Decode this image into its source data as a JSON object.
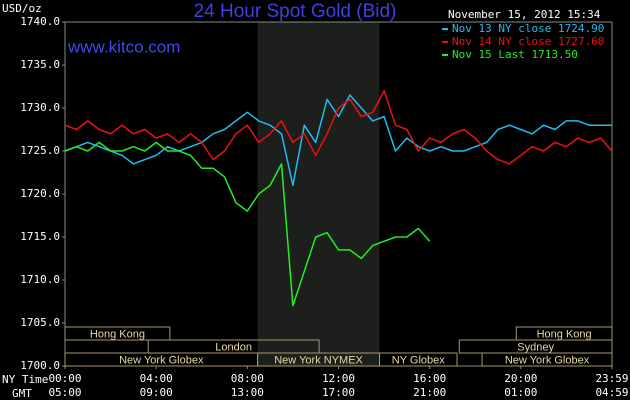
{
  "chart_data": {
    "type": "line",
    "title": "24 Hour Spot Gold (Bid)",
    "subtitle": "www.kitco.com",
    "timestamp": "November 15, 2012 15:34",
    "y_label": "USD/oz",
    "x_row_labels": [
      "NY Time",
      "GMT"
    ],
    "x": [
      0,
      0.5,
      1,
      1.5,
      2,
      2.5,
      3,
      3.5,
      4,
      4.5,
      5,
      5.5,
      6,
      6.5,
      7,
      7.5,
      8,
      8.5,
      9,
      9.5,
      10,
      10.5,
      11,
      11.5,
      12,
      12.5,
      13,
      13.5,
      14,
      14.5,
      15,
      15.5,
      16,
      16.5,
      17,
      17.5,
      18,
      18.5,
      19,
      19.5,
      20,
      20.5,
      21,
      21.5,
      22,
      22.5,
      23,
      23.5,
      24
    ],
    "xlim": [
      0,
      24
    ],
    "xticks": [
      {
        "value": 0,
        "label": "00:00"
      },
      {
        "value": 4,
        "label": "04:00"
      },
      {
        "value": 8,
        "label": "08:00"
      },
      {
        "value": 12,
        "label": "12:00"
      },
      {
        "value": 16,
        "label": "16:00"
      },
      {
        "value": 20,
        "label": "20:00"
      },
      {
        "value": 24,
        "label": "23:59"
      }
    ],
    "xticks_gmt": [
      "05:00",
      "09:00",
      "13:00",
      "17:00",
      "21:00",
      "01:00",
      "04:59"
    ],
    "ylim": [
      1700,
      1740
    ],
    "yticks": [
      {
        "value": 1700,
        "label": "1700.0"
      },
      {
        "value": 1705,
        "label": "1705.0"
      },
      {
        "value": 1710,
        "label": "1710.0"
      },
      {
        "value": 1715,
        "label": "1715.0"
      },
      {
        "value": 1720,
        "label": "1720.0"
      },
      {
        "value": 1725,
        "label": "1725.0"
      },
      {
        "value": 1730,
        "label": "1730.0"
      },
      {
        "value": 1735,
        "label": "1735.0"
      },
      {
        "value": 1740,
        "label": "1740.0"
      }
    ],
    "shaded": [
      8.45,
      13.8
    ],
    "series": [
      {
        "name": "Nov 13 NY close 1724.90",
        "color": "#22bbee",
        "values": [
          1725,
          1725.5,
          1726,
          1725.5,
          1725,
          1724.5,
          1723.5,
          1724,
          1724.5,
          1725.5,
          1725,
          1725.5,
          1726,
          1727,
          1727.5,
          1728.5,
          1729.5,
          1728.5,
          1728,
          1727,
          1721,
          1728,
          1726,
          1731,
          1729,
          1731.5,
          1730,
          1728.5,
          1729,
          1725,
          1726.5,
          1725.5,
          1725,
          1725.5,
          1725,
          1725,
          1725.5,
          1726,
          1727.5,
          1728,
          1727.5,
          1727,
          1728,
          1727.5,
          1728.5,
          1728.5,
          1728,
          1728,
          1728
        ]
      },
      {
        "name": "Nov 14 NY close 1727.60",
        "color": "#ee1111",
        "values": [
          1728,
          1727.5,
          1728.5,
          1727.5,
          1727,
          1728,
          1727,
          1727.5,
          1726.5,
          1727,
          1726,
          1727,
          1726,
          1724,
          1725,
          1727,
          1728,
          1726,
          1727,
          1728.5,
          1726,
          1727,
          1724.5,
          1727,
          1730,
          1731,
          1729,
          1729.5,
          1732,
          1728,
          1727.5,
          1725,
          1726.5,
          1726,
          1727,
          1727.5,
          1726.5,
          1725,
          1724,
          1723.5,
          1724.5,
          1725.5,
          1725,
          1726,
          1725.5,
          1726.5,
          1726,
          1726.5,
          1725
        ]
      },
      {
        "name": "Nov 15 Last 1713.50",
        "color": "#22ee22",
        "values": [
          1725,
          1725.5,
          1725,
          1726,
          1725,
          1725,
          1725.5,
          1725,
          1726,
          1725,
          1725,
          1724.5,
          1723,
          1723,
          1722,
          1719,
          1718,
          1720,
          1721,
          1723.5,
          1707,
          1711,
          1715,
          1715.5,
          1713.5,
          1713.5,
          1712.5,
          1714,
          1714.5,
          1715,
          1715,
          1716,
          1714.5,
          null,
          null,
          null,
          null,
          null,
          null,
          null,
          null,
          null,
          null,
          null,
          null,
          null,
          null,
          null,
          null
        ]
      }
    ],
    "session_rows": [
      [
        {
          "label": "Hong Kong",
          "start": 0,
          "end": 4.6
        },
        {
          "label": "Hong Kong",
          "start": 19.8,
          "end": 24
        }
      ],
      [
        {
          "label": "London",
          "start": 3.65,
          "end": 11.15
        },
        {
          "label": "Sydney",
          "start": 17.3,
          "end": 24
        }
      ],
      [
        {
          "label": "New York Globex",
          "start": 0,
          "end": 8.45
        },
        {
          "label": "New York NYMEX",
          "start": 8.45,
          "end": 13.8
        },
        {
          "label": "NY Globex",
          "start": 13.8,
          "end": 17.2
        },
        {
          "label": "New York Globex",
          "start": 18.3,
          "end": 24
        }
      ]
    ]
  }
}
